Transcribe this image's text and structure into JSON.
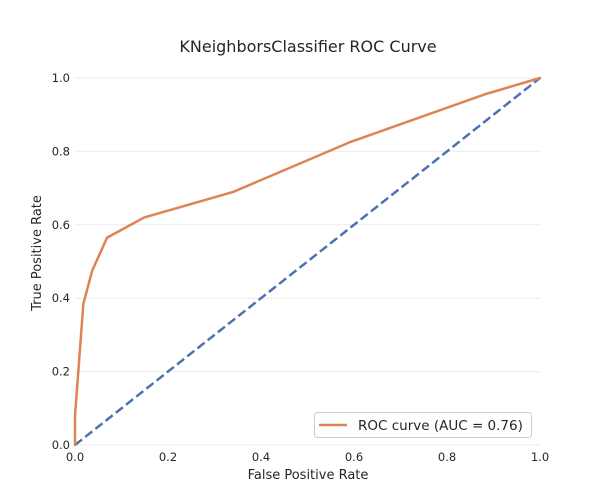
{
  "chart_data": {
    "type": "line",
    "title": "KNeighborsClassifier ROC Curve",
    "xlabel": "False Positive Rate",
    "ylabel": "True Positive Rate",
    "xlim": [
      0,
      1
    ],
    "ylim": [
      0,
      1
    ],
    "xticks": [
      "0.0",
      "0.2",
      "0.4",
      "0.6",
      "0.8",
      "1.0"
    ],
    "yticks": [
      "0.0",
      "0.2",
      "0.4",
      "0.6",
      "0.8",
      "1.0"
    ],
    "grid": "horizontal",
    "legend_position": "lower-right",
    "series": [
      {
        "name": "ROC curve (AUC = 0.76)",
        "color": "#dd8452",
        "style": "solid",
        "x": [
          0.0,
          0.0,
          0.018,
          0.037,
          0.069,
          0.149,
          0.341,
          0.591,
          0.88,
          1.0
        ],
        "y": [
          0.0,
          0.08,
          0.385,
          0.475,
          0.565,
          0.62,
          0.69,
          0.825,
          0.955,
          1.0
        ]
      },
      {
        "color": "#4c72b0",
        "style": "dashed",
        "x": [
          0,
          1
        ],
        "y": [
          0,
          1
        ]
      }
    ]
  }
}
